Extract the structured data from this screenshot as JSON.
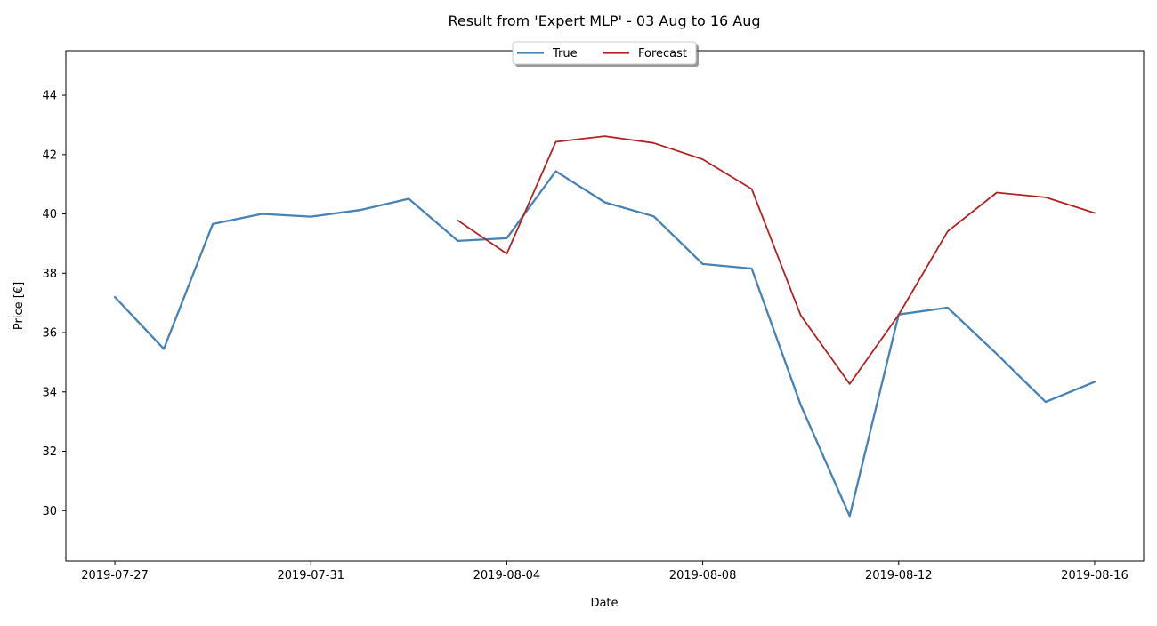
{
  "chart_data": {
    "type": "line",
    "title": "Result from 'Expert MLP' - 03 Aug to 16 Aug",
    "xlabel": "Date",
    "ylabel": "Price [€]",
    "x": [
      "2019-07-27",
      "2019-07-28",
      "2019-07-29",
      "2019-07-30",
      "2019-07-31",
      "2019-08-01",
      "2019-08-02",
      "2019-08-03",
      "2019-08-04",
      "2019-08-05",
      "2019-08-06",
      "2019-08-07",
      "2019-08-08",
      "2019-08-09",
      "2019-08-10",
      "2019-08-11",
      "2019-08-12",
      "2019-08-13",
      "2019-08-14",
      "2019-08-15",
      "2019-08-16"
    ],
    "series": [
      {
        "name": "True",
        "color": "#4682b4",
        "values": [
          37.2,
          35.45,
          39.66,
          40.0,
          39.91,
          40.13,
          40.51,
          39.09,
          39.18,
          41.44,
          40.39,
          39.92,
          38.31,
          38.16,
          33.56,
          29.82,
          36.61,
          36.84,
          35.28,
          33.66,
          34.34
        ]
      },
      {
        "name": "Forecast",
        "color": "#b22222",
        "values": [
          null,
          null,
          null,
          null,
          null,
          null,
          null,
          39.78,
          38.66,
          42.43,
          42.62,
          42.39,
          41.84,
          40.84,
          36.58,
          34.27,
          36.6,
          39.41,
          40.72,
          40.56,
          40.03
        ]
      }
    ],
    "xticks": [
      "2019-07-27",
      "2019-07-31",
      "2019-08-04",
      "2019-08-08",
      "2019-08-12",
      "2019-08-16"
    ],
    "yticks": [
      30,
      32,
      34,
      36,
      38,
      40,
      42,
      44
    ],
    "ylim": [
      28.3,
      45.5
    ],
    "xlim": [
      "2019-07-26",
      "2019-08-17"
    ],
    "legend_position": "top-center",
    "grid": false
  }
}
